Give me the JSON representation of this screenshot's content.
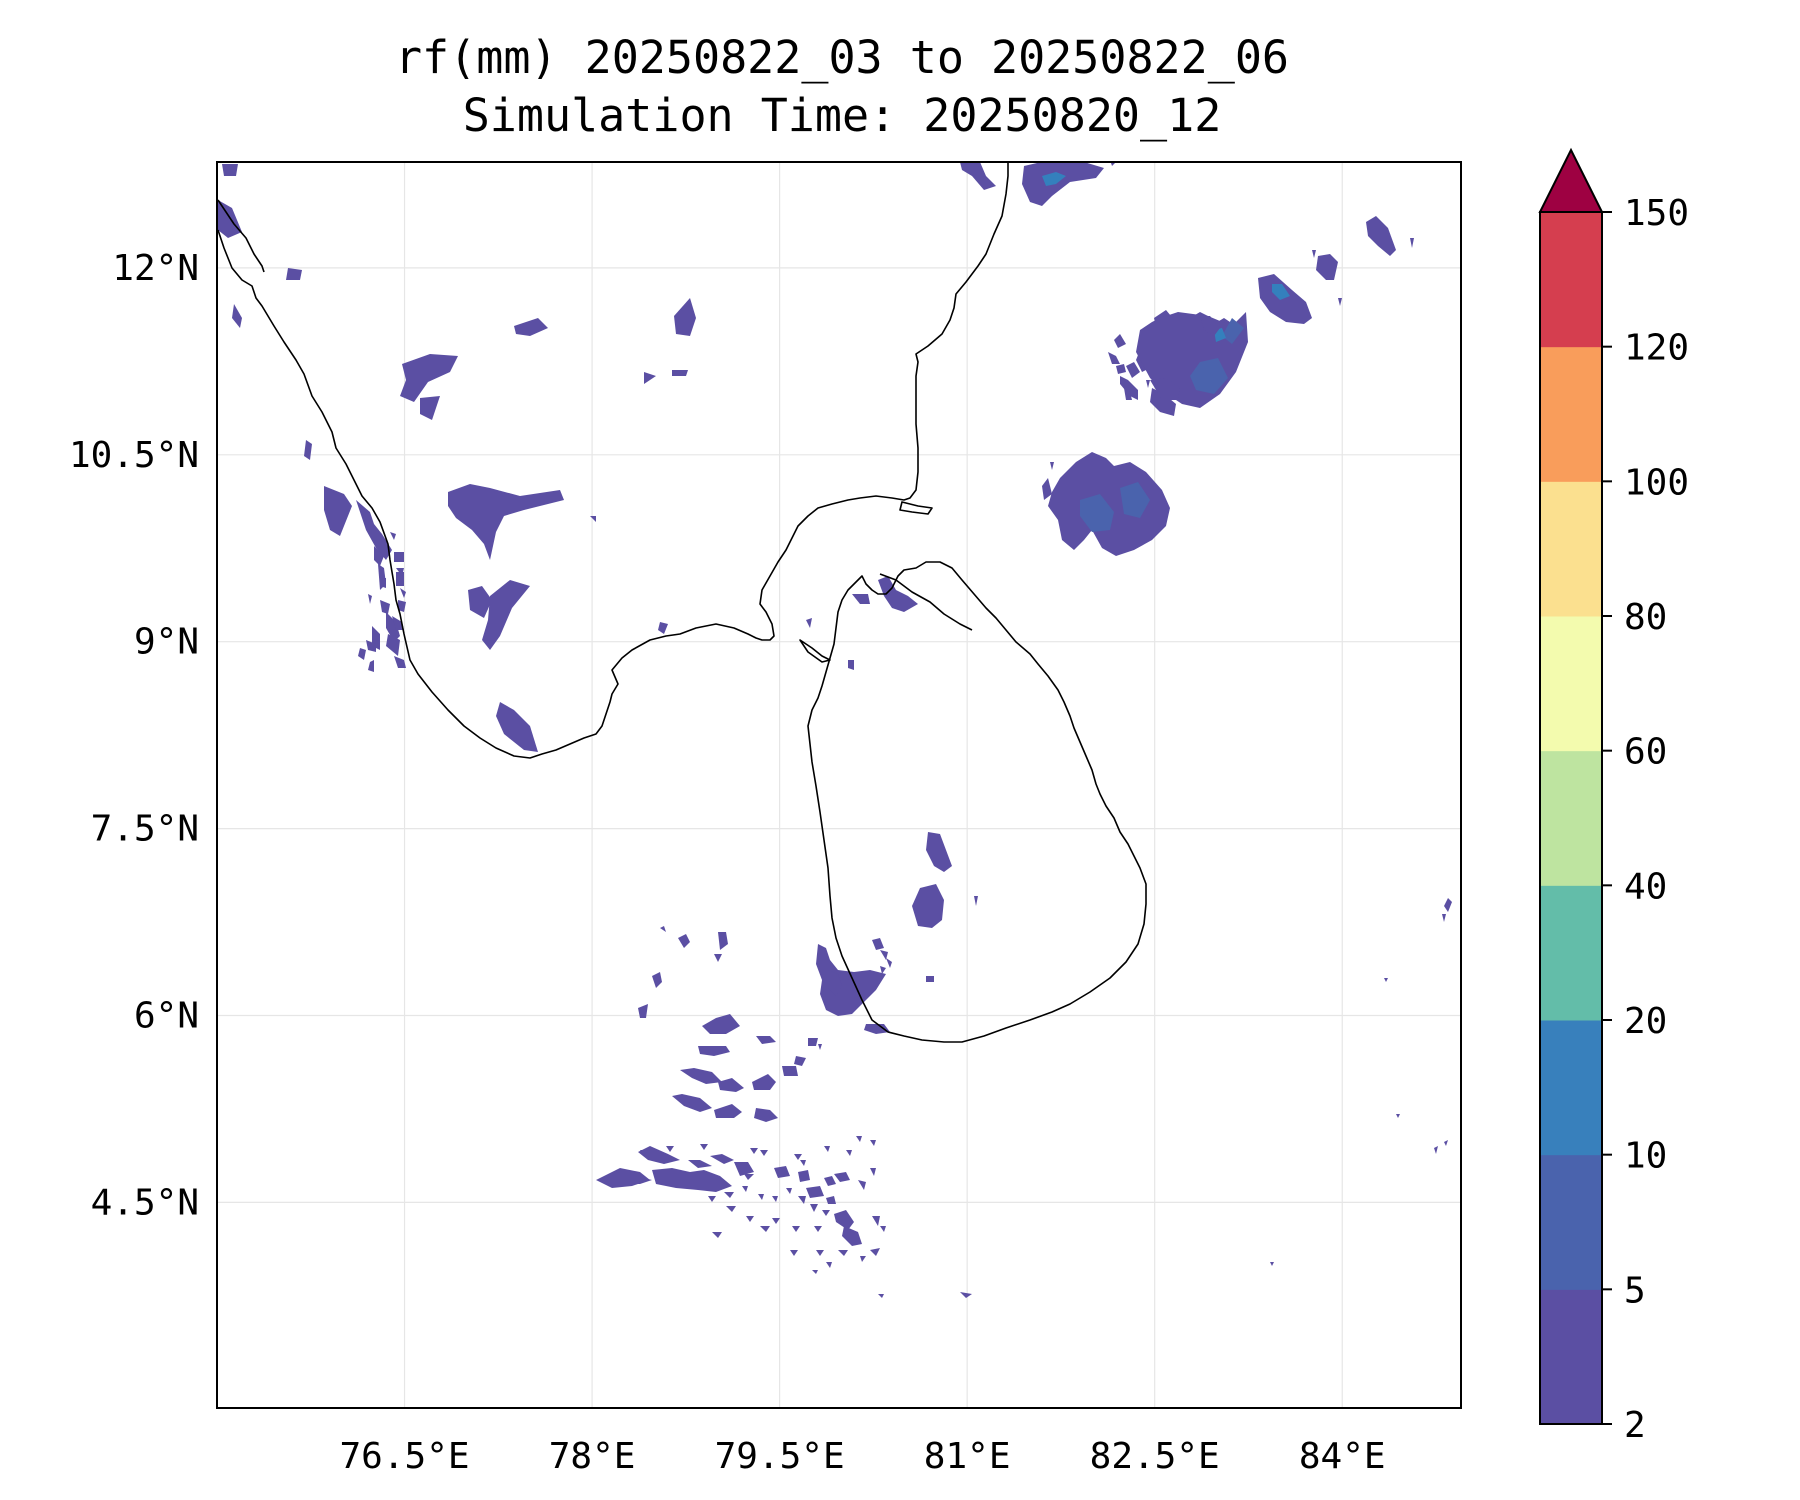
{
  "title": {
    "line1": "rf(mm) 20250822_03 to 20250822_06",
    "line2": "Simulation Time: 20250820_12"
  },
  "map": {
    "extent": {
      "lon_min": 75.0,
      "lon_max": 84.95,
      "lat_min": 2.85,
      "lat_max": 12.85
    },
    "lon_ticks": [
      {
        "value": 76.5,
        "label": "76.5°E"
      },
      {
        "value": 78.0,
        "label": "78°E"
      },
      {
        "value": 79.5,
        "label": "79.5°E"
      },
      {
        "value": 81.0,
        "label": "81°E"
      },
      {
        "value": 82.5,
        "label": "82.5°E"
      },
      {
        "value": 84.0,
        "label": "84°E"
      }
    ],
    "lat_ticks": [
      {
        "value": 12.0,
        "label": "12°N"
      },
      {
        "value": 10.5,
        "label": "10.5°N"
      },
      {
        "value": 9.0,
        "label": "9°N"
      },
      {
        "value": 7.5,
        "label": "7.5°N"
      },
      {
        "value": 6.0,
        "label": "6°N"
      },
      {
        "value": 4.5,
        "label": "4.5°N"
      }
    ],
    "grid": true,
    "coastline_color": "#000000",
    "rain_colors": {
      "2-5": "#5b4fa3",
      "5-10": "#4a63ad",
      "10-20": "#3480bd"
    }
  },
  "colorbar": {
    "boundaries": [
      2,
      5,
      10,
      20,
      40,
      60,
      80,
      100,
      120,
      150
    ],
    "tick_labels": [
      "2",
      "5",
      "10",
      "20",
      "40",
      "60",
      "80",
      "100",
      "120",
      "150"
    ],
    "colors": [
      "#5b4fa3",
      "#4a63ad",
      "#3880bc",
      "#63bda9",
      "#bee4a0",
      "#f3fbae",
      "#fbe08f",
      "#f99d5b",
      "#d53e4f"
    ],
    "extend_max_color": "#9e0142",
    "orientation": "vertical",
    "position": "right"
  }
}
